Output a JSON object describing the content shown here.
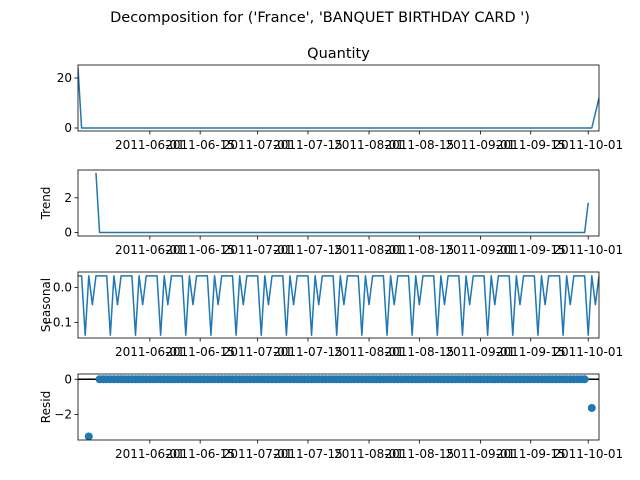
{
  "figure": {
    "suptitle": "Decomposition for ('France', 'BANQUET BIRTHDAY  CARD  ')"
  },
  "chart_data": [
    {
      "type": "line",
      "title": "Quantity",
      "ylabel": "",
      "x_start": "2011-05-12",
      "x_end": "2011-10-04",
      "ylim": [
        -1.2,
        25.2
      ],
      "yticks": [
        0,
        20
      ],
      "xticks": [
        "2011-06-01",
        "2011-06-15",
        "2011-07-01",
        "2011-07-15",
        "2011-08-01",
        "2011-08-15",
        "2011-09-01",
        "2011-09-15",
        "2011-10-01"
      ],
      "series": [
        {
          "color": "#1f77b4",
          "points": [
            [
              "2011-05-12",
              24
            ],
            [
              "2011-05-13",
              0
            ],
            [
              "2011-10-02",
              0
            ],
            [
              "2011-10-04",
              12
            ]
          ]
        }
      ]
    },
    {
      "type": "line",
      "title": "",
      "ylabel": "Trend",
      "x_start": "2011-05-12",
      "x_end": "2011-10-04",
      "ylim": [
        -0.2,
        3.6
      ],
      "yticks": [
        0,
        2
      ],
      "xticks": [
        "2011-06-01",
        "2011-06-15",
        "2011-07-01",
        "2011-07-15",
        "2011-08-01",
        "2011-08-15",
        "2011-09-01",
        "2011-09-15",
        "2011-10-01"
      ],
      "series": [
        {
          "color": "#1f77b4",
          "points": [
            [
              "2011-05-17",
              3.43
            ],
            [
              "2011-05-18",
              0
            ],
            [
              "2011-09-30",
              0
            ],
            [
              "2011-10-01",
              1.71
            ]
          ]
        }
      ]
    },
    {
      "type": "line",
      "title": "",
      "ylabel": "Seasonal",
      "x_start": "2011-05-12",
      "x_end": "2011-10-04",
      "ylim": [
        -0.145,
        0.045
      ],
      "yticks": [
        0.0,
        -0.1
      ],
      "tick_labels": [
        "0.0",
        "−0.1"
      ],
      "xticks": [
        "2011-06-01",
        "2011-06-15",
        "2011-07-01",
        "2011-07-15",
        "2011-08-01",
        "2011-08-15",
        "2011-09-01",
        "2011-09-15",
        "2011-10-01"
      ],
      "seasonal_pattern": [
        0.034,
        0.034,
        -0.137,
        0.034,
        -0.049,
        0.034,
        0.034
      ],
      "series": [
        {
          "color": "#1f77b4",
          "start": "2011-05-12",
          "end": "2011-10-04"
        }
      ]
    },
    {
      "type": "scatter",
      "title": "",
      "ylabel": "Resid",
      "x_start": "2011-05-12",
      "x_end": "2011-10-04",
      "ylim": [
        -3.45,
        0.3
      ],
      "yticks": [
        0,
        -2
      ],
      "tick_labels": [
        "0",
        "−2"
      ],
      "xticks": [
        "2011-06-01",
        "2011-06-15",
        "2011-07-01",
        "2011-07-15",
        "2011-08-01",
        "2011-08-15",
        "2011-09-01",
        "2011-09-15",
        "2011-10-01"
      ],
      "zero_line": true,
      "points_start": "2011-05-18",
      "points_end": "2011-09-30",
      "points_value": 0,
      "outliers": [
        [
          "2011-05-15",
          -3.25
        ],
        [
          "2011-10-02",
          -1.63
        ]
      ],
      "series": [
        {
          "color": "#1f77b4"
        }
      ]
    }
  ]
}
